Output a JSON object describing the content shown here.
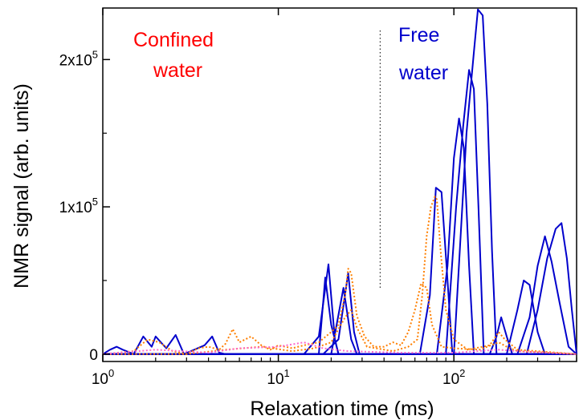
{
  "chart_data": {
    "type": "line",
    "title": "",
    "xlabel": "Relaxation time (ms)",
    "ylabel": "NMR signal (arb. units)",
    "xscale": "log",
    "xlim": [
      1,
      500
    ],
    "ylim": [
      -5000,
      235000
    ],
    "grid": false,
    "legend": "none",
    "x_ticks": [
      {
        "value": 1,
        "base": "10",
        "exp": "0"
      },
      {
        "value": 10,
        "base": "10",
        "exp": "1"
      },
      {
        "value": 100,
        "base": "10",
        "exp": "2"
      }
    ],
    "y_ticks": [
      {
        "value": 0,
        "text": "0",
        "exp": ""
      },
      {
        "value": 100000,
        "text": "1x10",
        "exp": "5"
      },
      {
        "value": 200000,
        "text": "2x10",
        "exp": "5"
      }
    ],
    "annotations": [
      {
        "lines": [
          "Confined",
          "water"
        ],
        "color": "#ff0000"
      },
      {
        "lines": [
          "Free",
          "water"
        ],
        "color": "#0000cc"
      }
    ],
    "divider_x": 38,
    "colors": {
      "blue": "#0000cc",
      "orange": "#ff7f00",
      "pink": "#ff66cc"
    },
    "series": [
      {
        "style": "solid",
        "color": "#0000cc",
        "points": [
          [
            1,
            0
          ],
          [
            1.1,
            3000
          ],
          [
            1.2,
            5000
          ],
          [
            1.3,
            3000
          ],
          [
            1.5,
            0
          ],
          [
            1.7,
            12000
          ],
          [
            1.9,
            5000
          ],
          [
            2.0,
            12000
          ],
          [
            2.3,
            4000
          ],
          [
            2.6,
            13000
          ],
          [
            2.9,
            0
          ],
          [
            3.8,
            6000
          ],
          [
            4.2,
            12000
          ],
          [
            4.6,
            1000
          ],
          [
            5,
            0
          ],
          [
            17,
            0
          ],
          [
            18.5,
            52000
          ],
          [
            20,
            20000
          ],
          [
            22,
            0
          ],
          [
            25,
            0
          ],
          [
            32,
            0
          ],
          [
            50,
            0
          ],
          [
            85,
            0
          ],
          [
            120,
            0
          ],
          [
            150,
            0
          ],
          [
            170,
            0
          ],
          [
            200,
            0
          ],
          [
            230,
            0
          ],
          [
            500,
            0
          ]
        ]
      },
      {
        "style": "solid",
        "color": "#0000cc",
        "points": [
          [
            1,
            0
          ],
          [
            14,
            0
          ],
          [
            17,
            12000
          ],
          [
            19.3,
            61000
          ],
          [
            21,
            10000
          ],
          [
            22,
            0
          ],
          [
            500,
            0
          ]
        ]
      },
      {
        "style": "solid",
        "color": "#0000cc",
        "points": [
          [
            1,
            0
          ],
          [
            18,
            0
          ],
          [
            22,
            10000
          ],
          [
            25,
            55000
          ],
          [
            27,
            15000
          ],
          [
            29,
            0
          ],
          [
            500,
            0
          ]
        ]
      },
      {
        "style": "solid",
        "color": "#0000cc",
        "points": [
          [
            1,
            0
          ],
          [
            20,
            0
          ],
          [
            23.5,
            45000
          ],
          [
            26,
            10000
          ],
          [
            28,
            0
          ],
          [
            500,
            0
          ]
        ]
      },
      {
        "style": "solid",
        "color": "#0000cc",
        "points": [
          [
            1,
            0
          ],
          [
            64,
            0
          ],
          [
            73,
            40000
          ],
          [
            79,
            113000
          ],
          [
            85,
            110000
          ],
          [
            92,
            50000
          ],
          [
            98,
            0
          ],
          [
            500,
            0
          ]
        ]
      },
      {
        "style": "solid",
        "color": "#0000cc",
        "points": [
          [
            1,
            0
          ],
          [
            80,
            0
          ],
          [
            92,
            60000
          ],
          [
            100,
            133000
          ],
          [
            107,
            160000
          ],
          [
            114,
            140000
          ],
          [
            122,
            60000
          ],
          [
            130,
            0
          ],
          [
            500,
            0
          ]
        ]
      },
      {
        "style": "solid",
        "color": "#0000cc",
        "points": [
          [
            1,
            0
          ],
          [
            90,
            0
          ],
          [
            103,
            100000
          ],
          [
            113,
            155000
          ],
          [
            122,
            193000
          ],
          [
            130,
            180000
          ],
          [
            138,
            100000
          ],
          [
            148,
            0
          ],
          [
            500,
            0
          ]
        ]
      },
      {
        "style": "solid",
        "color": "#0000cc",
        "points": [
          [
            1,
            0
          ],
          [
            100,
            0
          ],
          [
            118,
            150000
          ],
          [
            130,
            205000
          ],
          [
            137,
            234000
          ],
          [
            146,
            230000
          ],
          [
            155,
            170000
          ],
          [
            165,
            70000
          ],
          [
            175,
            0
          ],
          [
            500,
            0
          ]
        ]
      },
      {
        "style": "solid",
        "color": "#0000cc",
        "points": [
          [
            1,
            0
          ],
          [
            160,
            0
          ],
          [
            175,
            12000
          ],
          [
            186,
            25000
          ],
          [
            200,
            12000
          ],
          [
            215,
            0
          ],
          [
            500,
            0
          ]
        ]
      },
      {
        "style": "solid",
        "color": "#0000cc",
        "points": [
          [
            1,
            0
          ],
          [
            200,
            0
          ],
          [
            230,
            30000
          ],
          [
            250,
            50000
          ],
          [
            270,
            47000
          ],
          [
            300,
            15000
          ],
          [
            330,
            0
          ],
          [
            500,
            0
          ]
        ]
      },
      {
        "style": "solid",
        "color": "#0000cc",
        "points": [
          [
            1,
            0
          ],
          [
            230,
            0
          ],
          [
            270,
            25000
          ],
          [
            300,
            60000
          ],
          [
            330,
            80000
          ],
          [
            360,
            63000
          ],
          [
            400,
            35000
          ],
          [
            450,
            5000
          ],
          [
            500,
            0
          ]
        ]
      },
      {
        "style": "solid",
        "color": "#0000cc",
        "points": [
          [
            1,
            0
          ],
          [
            260,
            0
          ],
          [
            300,
            30000
          ],
          [
            340,
            65000
          ],
          [
            380,
            85000
          ],
          [
            410,
            89000
          ],
          [
            440,
            65000
          ],
          [
            470,
            30000
          ],
          [
            500,
            0
          ]
        ]
      },
      {
        "style": "dotted",
        "color": "#ff7f00",
        "points": [
          [
            1,
            0
          ],
          [
            1.5,
            2000
          ],
          [
            1.8,
            10000
          ],
          [
            2.1,
            8000
          ],
          [
            2.5,
            2000
          ],
          [
            3,
            0
          ],
          [
            3.5,
            4000
          ],
          [
            4,
            5000
          ],
          [
            4.6,
            3000
          ],
          [
            5,
            7000
          ],
          [
            5.5,
            17000
          ],
          [
            6,
            8000
          ],
          [
            7,
            12000
          ],
          [
            8,
            6000
          ],
          [
            9,
            3000
          ],
          [
            10,
            6000
          ],
          [
            12,
            4000
          ],
          [
            14,
            6000
          ],
          [
            17,
            8000
          ],
          [
            20,
            15000
          ],
          [
            22,
            20000
          ],
          [
            24,
            40000
          ],
          [
            25,
            58000
          ],
          [
            26,
            55000
          ],
          [
            28,
            26000
          ],
          [
            31,
            12000
          ],
          [
            35,
            5000
          ],
          [
            40,
            5000
          ],
          [
            45,
            8000
          ],
          [
            50,
            6000
          ],
          [
            55,
            15000
          ],
          [
            60,
            30000
          ],
          [
            65,
            48000
          ],
          [
            70,
            45000
          ],
          [
            75,
            20000
          ],
          [
            85,
            5000
          ],
          [
            100,
            4000
          ],
          [
            140,
            3000
          ],
          [
            180,
            8000
          ],
          [
            200,
            5000
          ],
          [
            230,
            2000
          ],
          [
            500,
            0
          ]
        ]
      },
      {
        "style": "dotted",
        "color": "#ff7f00",
        "points": [
          [
            1,
            0
          ],
          [
            3,
            0
          ],
          [
            5,
            3000
          ],
          [
            8,
            5000
          ],
          [
            12,
            2000
          ],
          [
            16,
            4000
          ],
          [
            20,
            8000
          ],
          [
            24,
            25000
          ],
          [
            26,
            30000
          ],
          [
            28,
            18000
          ],
          [
            32,
            5000
          ],
          [
            45,
            2000
          ],
          [
            55,
            5000
          ],
          [
            62,
            10000
          ],
          [
            66,
            40000
          ],
          [
            70,
            80000
          ],
          [
            74,
            100000
          ],
          [
            78,
            107000
          ],
          [
            80,
            105000
          ],
          [
            84,
            70000
          ],
          [
            90,
            30000
          ],
          [
            100,
            10000
          ],
          [
            120,
            3000
          ],
          [
            160,
            6000
          ],
          [
            180,
            15000
          ],
          [
            195,
            10000
          ],
          [
            230,
            3000
          ],
          [
            500,
            0
          ]
        ]
      },
      {
        "style": "dotted",
        "color": "#ff66cc",
        "points": [
          [
            1,
            0
          ],
          [
            2,
            3000
          ],
          [
            4,
            1000
          ],
          [
            6,
            4000
          ],
          [
            10,
            5000
          ],
          [
            14,
            8000
          ],
          [
            18,
            4000
          ],
          [
            25,
            2000
          ],
          [
            50,
            1000
          ],
          [
            100,
            1000
          ],
          [
            180,
            3000
          ],
          [
            230,
            2000
          ],
          [
            500,
            0
          ]
        ]
      }
    ]
  }
}
